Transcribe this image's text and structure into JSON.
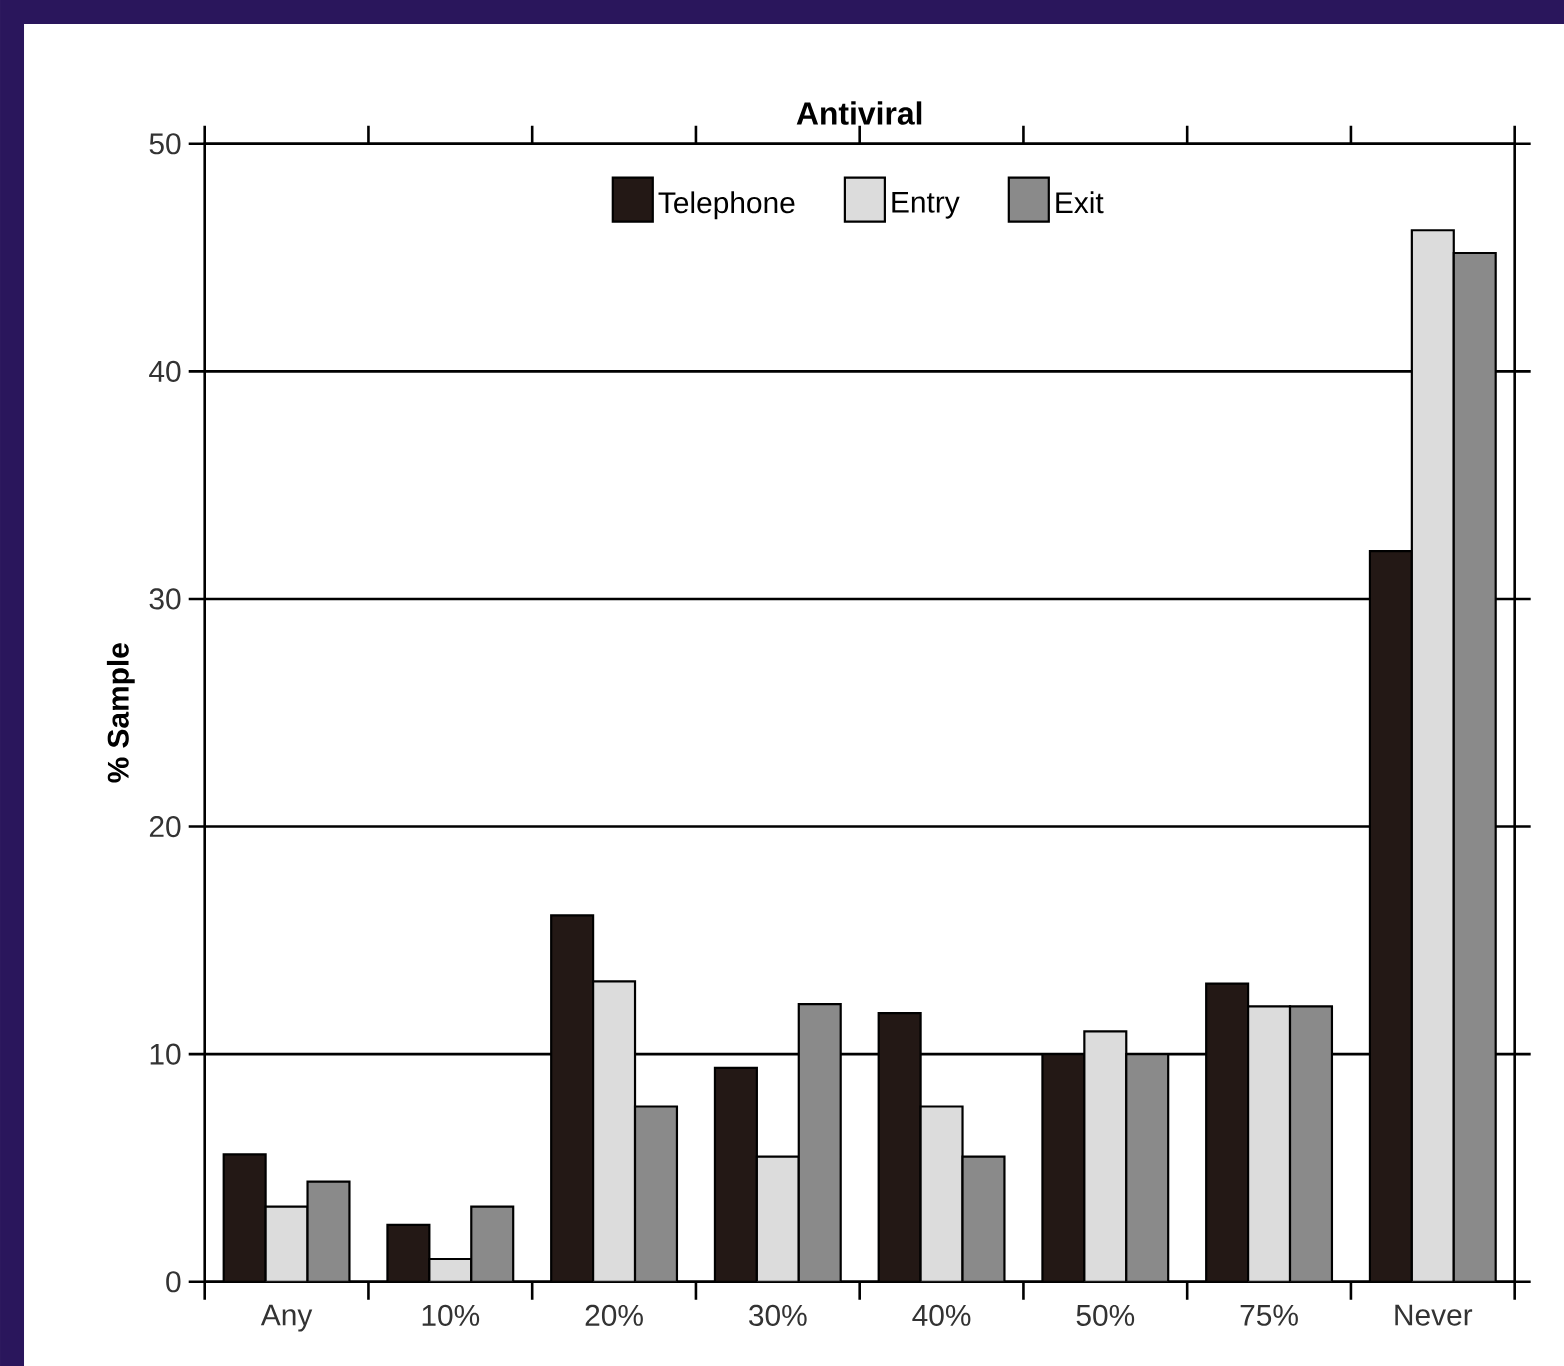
{
  "chart_data": {
    "type": "bar",
    "title": "Antiviral",
    "ylabel": "% Sample",
    "categories": [
      "Any",
      "10%",
      "20%",
      "30%",
      "40%",
      "50%",
      "75%",
      "Never"
    ],
    "series": [
      {
        "name": "Telephone",
        "color": "#231815",
        "values": [
          5.6,
          2.5,
          16.1,
          9.4,
          11.8,
          10.0,
          13.1,
          32.1
        ]
      },
      {
        "name": "Entry",
        "color": "#dcdcdc",
        "values": [
          3.3,
          1.0,
          13.2,
          5.5,
          7.7,
          11.0,
          12.1,
          46.2
        ]
      },
      {
        "name": "Exit",
        "color": "#8a8a8a",
        "values": [
          4.4,
          3.3,
          7.7,
          12.2,
          5.5,
          10.0,
          12.1,
          45.2
        ]
      }
    ],
    "ylim": [
      0,
      50
    ],
    "yticks": [
      0,
      10,
      20,
      30,
      40,
      50
    ],
    "grid": "y",
    "legend": "top"
  }
}
